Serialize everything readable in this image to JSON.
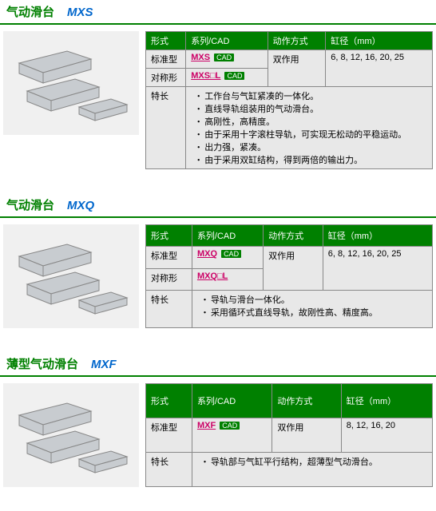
{
  "sections": [
    {
      "title_cn": "气动滑台",
      "title_model": "MXS",
      "headers": [
        "形式",
        "系列/CAD",
        "动作方式",
        "缸径（mm）"
      ],
      "rows": [
        {
          "type": "标准型",
          "series": "MXS",
          "has_cad": true,
          "action": "双作用",
          "bore": "6, 8, 12, 16, 20, 25",
          "action_rowspan": 2,
          "bore_rowspan": 2
        },
        {
          "type": "对称形",
          "series": "MXS□L",
          "has_cad": true
        }
      ],
      "feat_label": "特长",
      "features": [
        "工作台与气缸紧凑的一体化。",
        "直线导轨组装用的气动滑台。",
        "高刚性，高精度。",
        "由于采用十字滚柱导轨，可实现无松动的平稳运动。",
        "出力强，紧凑。",
        "由于采用双缸结构，得到两倍的输出力。"
      ]
    },
    {
      "title_cn": "气动滑台",
      "title_model": "MXQ",
      "headers": [
        "形式",
        "系列/CAD",
        "动作方式",
        "缸径（mm）"
      ],
      "rows": [
        {
          "type": "标准型",
          "series": "MXQ",
          "has_cad": true,
          "action": "双作用",
          "bore": "6, 8, 12, 16, 20, 25",
          "action_rowspan": 2,
          "bore_rowspan": 2
        },
        {
          "type": "对称形",
          "series": "MXQ□L",
          "has_cad": false
        }
      ],
      "feat_label": "特长",
      "features": [
        "导轨与滑台一体化。",
        "采用循环式直线导轨，故刚性高、精度高。"
      ]
    },
    {
      "title_cn": "薄型气动滑台",
      "title_model": "MXF",
      "headers": [
        "形式",
        "系列/CAD",
        "动作方式",
        "缸径（mm）"
      ],
      "rows": [
        {
          "type": "标准型",
          "series": "MXF",
          "has_cad": true,
          "action": "双作用",
          "bore": "8, 12, 16, 20"
        }
      ],
      "feat_label": "特长",
      "features": [
        "导轨部与气缸平行结构，超薄型气动滑台。"
      ]
    }
  ],
  "img_bg": "#f0f0f0",
  "part_fill": "#c8ccd0",
  "part_stroke": "#888"
}
